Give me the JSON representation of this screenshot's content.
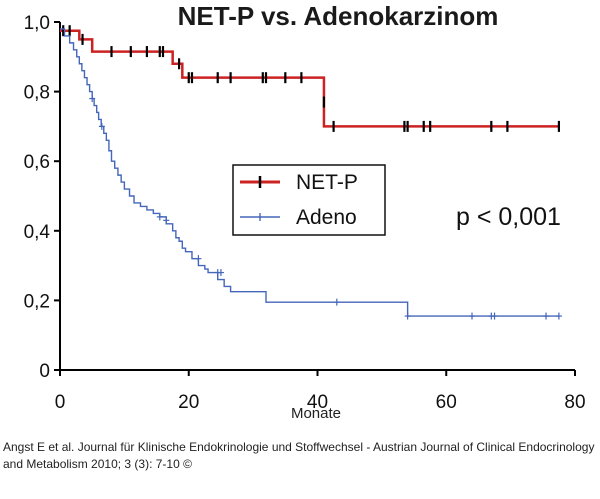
{
  "caption": "Angst E et al. Journal für Klinische Endokrinologie und Stoffwechsel - Austrian Journal of Clinical Endocrinology and Metabolism 2010; 3 (3): 7-10 ©",
  "chart_data": {
    "type": "line",
    "title": "NET-P vs. Adenokarzinom",
    "xlabel": "Monate",
    "ylabel": "",
    "xlim": [
      0,
      80
    ],
    "ylim": [
      0,
      1.0
    ],
    "xticks": [
      0,
      20,
      40,
      60,
      80
    ],
    "yticks": [
      "0",
      "0,2",
      "0,4",
      "0,6",
      "0,8",
      "1,0"
    ],
    "ytick_values": [
      0,
      0.2,
      0.4,
      0.6,
      0.8,
      1.0
    ],
    "grid": false,
    "legend_position": "center",
    "annotation": "p < 0,001",
    "series": [
      {
        "name": "NET-P",
        "color": "#cc2222",
        "marker_color": "#000000",
        "step": true,
        "x": [
          0,
          3,
          5,
          17.5,
          19,
          41,
          77.5
        ],
        "y": [
          0.975,
          0.95,
          0.915,
          0.88,
          0.84,
          0.7,
          0.7
        ],
        "censored_x": [
          0.5,
          1.5,
          3.5,
          8,
          11,
          13.5,
          15.5,
          16,
          18.5,
          20,
          20.5,
          24.5,
          26.5,
          31.5,
          32,
          35,
          37.5,
          41,
          42.5,
          53.5,
          54,
          56.5,
          57.5,
          67,
          69.5,
          77.5
        ],
        "censored_y": [
          0.975,
          0.975,
          0.95,
          0.915,
          0.915,
          0.915,
          0.915,
          0.915,
          0.88,
          0.84,
          0.84,
          0.84,
          0.84,
          0.84,
          0.84,
          0.84,
          0.84,
          0.77,
          0.7,
          0.7,
          0.7,
          0.7,
          0.7,
          0.7,
          0.7,
          0.7
        ]
      },
      {
        "name": "Adeno",
        "color": "#4466bb",
        "marker_color": "#4466bb",
        "step": true,
        "x": [
          0,
          0.7,
          1.5,
          2.1,
          2.6,
          3.0,
          3.4,
          3.8,
          4.2,
          4.6,
          5.0,
          5.3,
          5.7,
          6.0,
          6.4,
          6.8,
          7.2,
          7.6,
          8.0,
          8.5,
          9.0,
          9.5,
          10.0,
          10.8,
          11.5,
          12.5,
          13.5,
          14.5,
          15.5,
          16.5,
          17.5,
          18.0,
          18.5,
          19.0,
          19.5,
          20.5,
          21.5,
          22.5,
          23.0,
          24.5,
          25.5,
          26.5,
          32.0,
          54.0,
          77.5
        ],
        "y": [
          0.98,
          0.96,
          0.94,
          0.92,
          0.9,
          0.88,
          0.86,
          0.84,
          0.82,
          0.8,
          0.78,
          0.76,
          0.74,
          0.72,
          0.7,
          0.68,
          0.66,
          0.63,
          0.6,
          0.58,
          0.56,
          0.54,
          0.52,
          0.5,
          0.48,
          0.47,
          0.46,
          0.45,
          0.44,
          0.42,
          0.4,
          0.38,
          0.37,
          0.35,
          0.34,
          0.32,
          0.3,
          0.29,
          0.28,
          0.26,
          0.24,
          0.225,
          0.195,
          0.155,
          0.155
        ],
        "censored_x": [
          5.0,
          6.5,
          15.5,
          16.5,
          21.5,
          24.5,
          25.0,
          43.0,
          54.0,
          64.0,
          67.0,
          67.5,
          75.5,
          77.5
        ],
        "censored_y": [
          0.78,
          0.7,
          0.44,
          0.43,
          0.32,
          0.28,
          0.28,
          0.195,
          0.155,
          0.155,
          0.155,
          0.155,
          0.155,
          0.155
        ]
      }
    ]
  }
}
